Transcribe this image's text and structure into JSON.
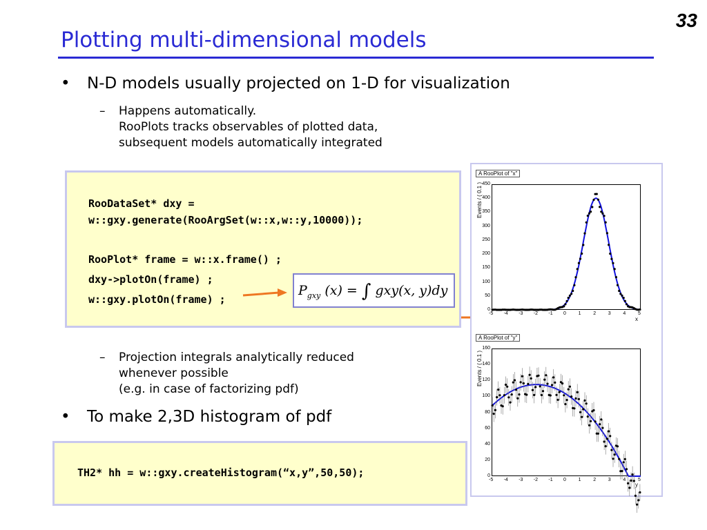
{
  "page_number": "33",
  "title": "Plotting multi-dimensional models",
  "bullets": [
    {
      "text": "N-D models usually projected on 1-D for visualization"
    },
    {
      "text": "To make 2,3D histogram of pdf"
    }
  ],
  "sub_bullets": {
    "first": [
      "Happens automatically.",
      "RooPlots tracks observables of plotted data,",
      "subsequent models automatically integrated"
    ],
    "second": [
      "Projection integrals analytically reduced",
      "whenever possible",
      "(e.g. in case of factorizing pdf)"
    ]
  },
  "code1": [
    "RooDataSet* dxy =",
    "w::gxy.generate(RooArgSet(w::x,w::y,10000));",
    "RooPlot* frame = w::x.frame() ;",
    "dxy->plotOn(frame) ;",
    "w::gxy.plotOn(frame) ;"
  ],
  "code2": "TH2* hh = w::gxy.createHistogram(“x,y”,50,50);",
  "formula": {
    "P": "P",
    "sub": "gxy",
    "lhs": "(x) =",
    "integral": "∫",
    "rhs": "gxy(x, y)dy"
  },
  "colors": {
    "title": "#2a2ad4",
    "arrow": "#ee7722",
    "code_bg": "#ffffcc",
    "curve": "#1010dd"
  },
  "plots": [
    {
      "title": "A RooPlot of \"x\"",
      "ylabel": "Events / ( 0.1 )",
      "xlabel": "x",
      "y_ticks": [
        "450",
        "400",
        "350",
        "300",
        "250",
        "200",
        "150",
        "100",
        "50",
        "0"
      ],
      "x_ticks": [
        "-5",
        "-4",
        "-3",
        "-2",
        "-1",
        "0",
        "1",
        "2",
        "3",
        "4",
        "5"
      ]
    },
    {
      "title": "A RooPlot of \"y\"",
      "ylabel": "Events / ( 0.1 )",
      "xlabel": "y",
      "y_ticks": [
        "160",
        "140",
        "120",
        "100",
        "80",
        "60",
        "40",
        "20",
        "0"
      ],
      "x_ticks": [
        "-5",
        "-4",
        "-3",
        "-2",
        "-1",
        "0",
        "1",
        "2",
        "3",
        "4",
        "5"
      ]
    }
  ]
}
